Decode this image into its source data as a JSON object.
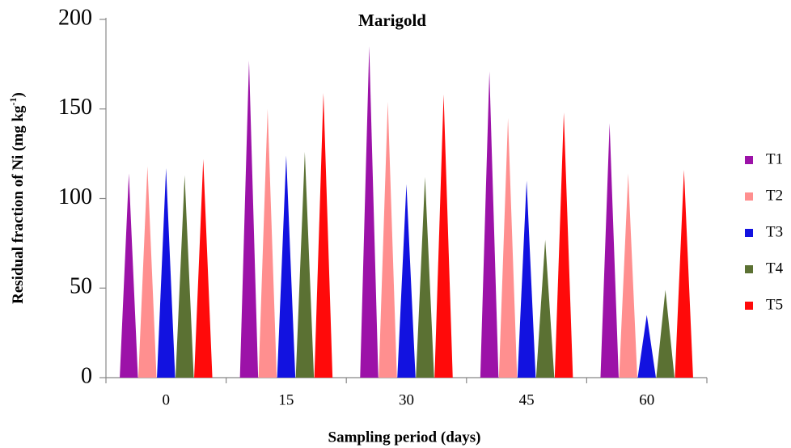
{
  "chart_data": {
    "type": "bar",
    "bar_shape": "triangle",
    "title": "Marigold",
    "x_label": "Sampling period (days)",
    "y_label_parts": [
      "Residual fraction of Ni (mg kg",
      "-1",
      ")"
    ],
    "categories": [
      "0",
      "15",
      "30",
      "45",
      "60"
    ],
    "series": [
      {
        "name": "T1",
        "color": "#9c12a8",
        "values": [
          114,
          177,
          185,
          171,
          142
        ]
      },
      {
        "name": "T2",
        "color": "#ff8f8f",
        "values": [
          118,
          150,
          154,
          145,
          114
        ]
      },
      {
        "name": "T3",
        "color": "#1212e0",
        "values": [
          117,
          124,
          108,
          110,
          35
        ]
      },
      {
        "name": "T4",
        "color": "#5b7133",
        "values": [
          113,
          126,
          112,
          77,
          49
        ]
      },
      {
        "name": "T5",
        "color": "#ff0a0a",
        "values": [
          122,
          159,
          158,
          148,
          116
        ]
      }
    ],
    "ylim": [
      0,
      200
    ],
    "yticks": [
      0,
      50,
      100,
      150,
      200
    ],
    "grid": false,
    "legend": "right"
  }
}
